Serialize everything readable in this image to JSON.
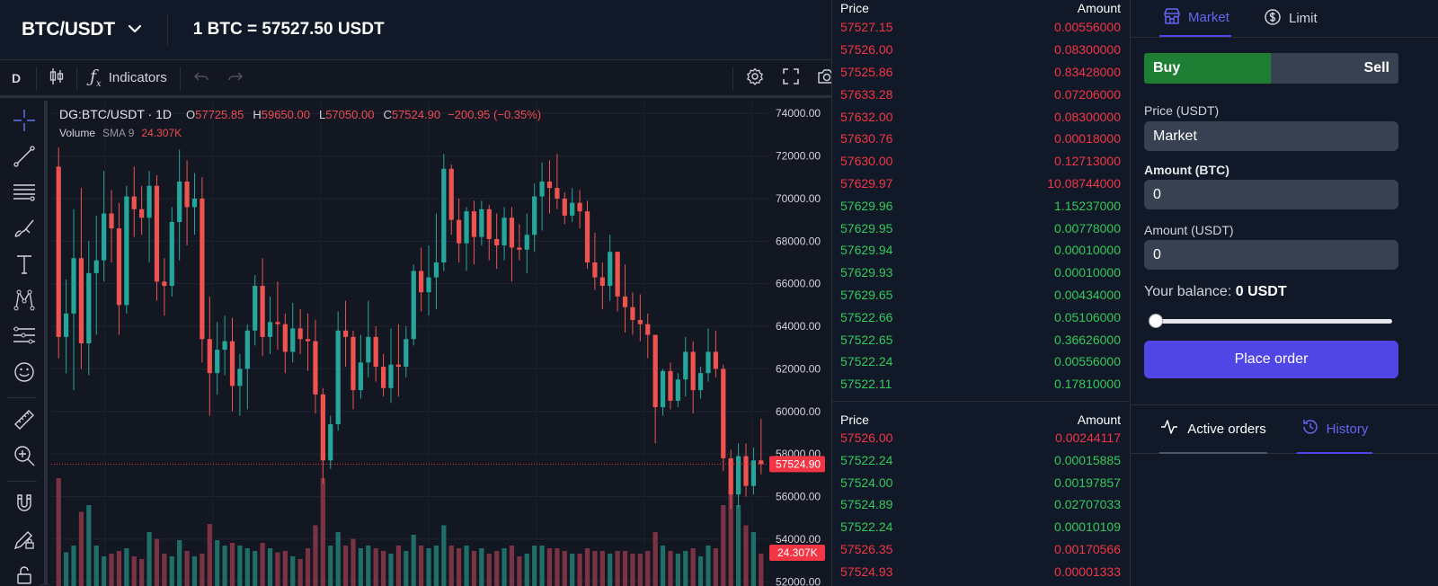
{
  "header": {
    "pair": "BTC/USDT",
    "price_text": "1 BTC = 57527.50 USDT"
  },
  "toolbar": {
    "interval": "D",
    "indicators_label": "Indicators"
  },
  "legend": {
    "symbol": "DG:BTC/USDT · 1D",
    "open_label": "O",
    "open": "57725.85",
    "high_label": "H",
    "high": "59650.00",
    "low_label": "L",
    "low": "57050.00",
    "close_label": "C",
    "close": "57524.90",
    "change": "−200.95 (−0.35%)",
    "volume_label": "Volume",
    "sma_label": "SMA 9",
    "volume_value": "24.307K"
  },
  "chart_data": {
    "type": "candlestick",
    "price_axis_ticks": [
      "74000.00",
      "72000.00",
      "70000.00",
      "68000.00",
      "66000.00",
      "64000.00",
      "62000.00",
      "60000.00",
      "58000.00",
      "56000.00",
      "54000.00",
      "52000.00"
    ],
    "ylim": [
      51800,
      74600
    ],
    "last_price_label": "57524.90",
    "last_price": 57524.9,
    "volume_label": "24.307K",
    "colors": {
      "up": "#26a69a",
      "down": "#ef5350",
      "up_vol": "#1f6e68",
      "down_vol": "#7a3342"
    },
    "candles": [
      [
        71500,
        72400,
        62500,
        63500,
        80
      ],
      [
        63500,
        66200,
        61800,
        64600,
        25
      ],
      [
        64600,
        69500,
        61000,
        67200,
        30
      ],
      [
        67200,
        70500,
        62000,
        63200,
        55
      ],
      [
        63200,
        68000,
        61700,
        66500,
        60
      ],
      [
        66500,
        69200,
        63600,
        67100,
        30
      ],
      [
        67100,
        71300,
        66100,
        69300,
        22
      ],
      [
        69300,
        70400,
        67000,
        68600,
        24
      ],
      [
        68600,
        69800,
        63600,
        65000,
        26
      ],
      [
        65000,
        70600,
        64600,
        70100,
        28
      ],
      [
        70100,
        71500,
        68200,
        69500,
        22
      ],
      [
        69500,
        70600,
        68300,
        69100,
        20
      ],
      [
        69100,
        71300,
        67000,
        70600,
        40
      ],
      [
        70600,
        71100,
        65200,
        66100,
        35
      ],
      [
        66100,
        67200,
        64500,
        65900,
        24
      ],
      [
        65900,
        69600,
        65400,
        68900,
        22
      ],
      [
        68900,
        72300,
        67100,
        70800,
        34
      ],
      [
        70800,
        71800,
        67800,
        69600,
        26
      ],
      [
        69600,
        71200,
        68300,
        70000,
        22
      ],
      [
        70000,
        71000,
        62300,
        63400,
        24
      ],
      [
        63400,
        65400,
        59800,
        61800,
        46
      ],
      [
        61800,
        64200,
        60800,
        62900,
        34
      ],
      [
        62900,
        64500,
        61700,
        63300,
        30
      ],
      [
        63300,
        64400,
        60000,
        61200,
        32
      ],
      [
        61200,
        62700,
        59800,
        62000,
        30
      ],
      [
        62000,
        64100,
        60100,
        63800,
        28
      ],
      [
        63800,
        66400,
        63100,
        65900,
        26
      ],
      [
        65900,
        67200,
        62600,
        63500,
        32
      ],
      [
        63500,
        65400,
        62700,
        64200,
        28
      ],
      [
        64200,
        66100,
        62900,
        64100,
        25
      ],
      [
        64100,
        64600,
        61800,
        62800,
        26
      ],
      [
        62800,
        65100,
        62300,
        63900,
        22
      ],
      [
        63900,
        64800,
        62700,
        63400,
        20
      ],
      [
        63400,
        64600,
        61900,
        63300,
        28
      ],
      [
        63300,
        64300,
        59900,
        60800,
        45
      ],
      [
        60800,
        61100,
        56600,
        57700,
        80
      ],
      [
        57700,
        59800,
        57300,
        59400,
        30
      ],
      [
        59400,
        64700,
        59100,
        63800,
        40
      ],
      [
        63800,
        65200,
        62100,
        63500,
        30
      ],
      [
        63500,
        63800,
        60100,
        61000,
        35
      ],
      [
        61000,
        63600,
        60600,
        62300,
        28
      ],
      [
        62300,
        65200,
        61600,
        63500,
        30
      ],
      [
        63500,
        64000,
        61400,
        62100,
        28
      ],
      [
        62100,
        62700,
        60700,
        61100,
        26
      ],
      [
        61100,
        63900,
        60400,
        62200,
        24
      ],
      [
        62200,
        64100,
        60700,
        62100,
        30
      ],
      [
        62100,
        64000,
        61600,
        63400,
        26
      ],
      [
        63400,
        66900,
        63100,
        66600,
        38
      ],
      [
        66600,
        67700,
        64700,
        65600,
        30
      ],
      [
        65600,
        67800,
        64500,
        66300,
        28
      ],
      [
        66300,
        69300,
        64800,
        67000,
        30
      ],
      [
        67000,
        72100,
        66600,
        71400,
        45
      ],
      [
        71400,
        71600,
        68300,
        69000,
        30
      ],
      [
        69000,
        70000,
        67000,
        67900,
        28
      ],
      [
        67900,
        69600,
        66600,
        69400,
        30
      ],
      [
        69400,
        69900,
        66900,
        68200,
        26
      ],
      [
        68200,
        69900,
        67800,
        69500,
        28
      ],
      [
        69500,
        69700,
        67100,
        68100,
        24
      ],
      [
        68100,
        69300,
        66700,
        67800,
        26
      ],
      [
        67800,
        69600,
        67100,
        69100,
        28
      ],
      [
        69100,
        69600,
        66100,
        67700,
        30
      ],
      [
        67700,
        68800,
        67100,
        67600,
        22
      ],
      [
        67600,
        69300,
        66500,
        68300,
        24
      ],
      [
        68300,
        70700,
        67500,
        70100,
        30
      ],
      [
        70100,
        71700,
        68500,
        70800,
        30
      ],
      [
        70800,
        71800,
        69300,
        70500,
        28
      ],
      [
        70500,
        72100,
        69500,
        70000,
        28
      ],
      [
        70000,
        70300,
        68800,
        69200,
        26
      ],
      [
        69200,
        70500,
        68900,
        69800,
        24
      ],
      [
        69800,
        70400,
        68600,
        69400,
        24
      ],
      [
        69400,
        69900,
        66700,
        67000,
        28
      ],
      [
        67000,
        68400,
        65700,
        66300,
        26
      ],
      [
        66300,
        67000,
        64800,
        65900,
        26
      ],
      [
        65900,
        68300,
        65200,
        67500,
        24
      ],
      [
        67500,
        67500,
        64700,
        65400,
        26
      ],
      [
        65400,
        66900,
        63700,
        64900,
        26
      ],
      [
        64900,
        65600,
        63600,
        64300,
        24
      ],
      [
        64300,
        65500,
        63300,
        64100,
        24
      ],
      [
        64100,
        64600,
        62500,
        63600,
        26
      ],
      [
        63600,
        63600,
        58500,
        60200,
        40
      ],
      [
        60200,
        62000,
        59800,
        61900,
        30
      ],
      [
        61900,
        62300,
        60100,
        60500,
        26
      ],
      [
        60500,
        61800,
        60200,
        61500,
        24
      ],
      [
        61500,
        63500,
        60700,
        62800,
        26
      ],
      [
        62800,
        63300,
        59900,
        61000,
        28
      ],
      [
        61000,
        62100,
        60600,
        61800,
        22
      ],
      [
        61800,
        63900,
        61400,
        62800,
        30
      ],
      [
        62800,
        63800,
        61600,
        62000,
        28
      ],
      [
        62000,
        62200,
        57200,
        57800,
        60
      ],
      [
        57800,
        58200,
        55400,
        56100,
        70
      ],
      [
        56100,
        58500,
        55500,
        57900,
        60
      ],
      [
        57900,
        58500,
        56000,
        56500,
        45
      ],
      [
        56500,
        58300,
        56100,
        57700,
        40
      ],
      [
        57700,
        59650,
        57050,
        57525,
        24
      ]
    ]
  },
  "orderbook": {
    "header_price": "Price",
    "header_amount": "Amount",
    "asks": [
      {
        "price": "57527.15",
        "amount": "0.00556000",
        "side": "sell"
      },
      {
        "price": "57526.00",
        "amount": "0.08300000",
        "side": "sell"
      },
      {
        "price": "57525.86",
        "amount": "0.83428000",
        "side": "sell"
      },
      {
        "price": "57633.28",
        "amount": "0.07206000",
        "side": "sell"
      },
      {
        "price": "57632.00",
        "amount": "0.08300000",
        "side": "sell"
      },
      {
        "price": "57630.76",
        "amount": "0.00018000",
        "side": "sell"
      },
      {
        "price": "57630.00",
        "amount": "0.12713000",
        "side": "sell"
      },
      {
        "price": "57629.97",
        "amount": "10.08744000",
        "side": "sell"
      },
      {
        "price": "57629.96",
        "amount": "1.15237000",
        "side": "buy"
      },
      {
        "price": "57629.95",
        "amount": "0.00778000",
        "side": "buy"
      },
      {
        "price": "57629.94",
        "amount": "0.00010000",
        "side": "buy"
      },
      {
        "price": "57629.93",
        "amount": "0.00010000",
        "side": "buy"
      },
      {
        "price": "57629.65",
        "amount": "0.00434000",
        "side": "buy"
      },
      {
        "price": "57522.66",
        "amount": "0.05106000",
        "side": "buy"
      },
      {
        "price": "57522.65",
        "amount": "0.36626000",
        "side": "buy"
      },
      {
        "price": "57522.24",
        "amount": "0.00556000",
        "side": "buy"
      },
      {
        "price": "57522.11",
        "amount": "0.17810000",
        "side": "buy"
      }
    ],
    "trades_header_price": "Price",
    "trades_header_amount": "Amount",
    "trades": [
      {
        "price": "57526.00",
        "amount": "0.00244117",
        "side": "sell"
      },
      {
        "price": "57522.24",
        "amount": "0.00015885",
        "side": "buy"
      },
      {
        "price": "57524.00",
        "amount": "0.00197857",
        "side": "buy"
      },
      {
        "price": "57524.89",
        "amount": "0.02707033",
        "side": "buy"
      },
      {
        "price": "57522.24",
        "amount": "0.00010109",
        "side": "buy"
      },
      {
        "price": "57526.35",
        "amount": "0.00170566",
        "side": "sell"
      },
      {
        "price": "57524.93",
        "amount": "0.00001333",
        "side": "sell"
      }
    ]
  },
  "trade": {
    "tab_market": "Market",
    "tab_limit": "Limit",
    "buy_label": "Buy",
    "sell_label": "Sell",
    "price_label": "Price (USDT)",
    "price_value": "Market",
    "amount_btc_label": "Amount (BTC)",
    "amount_btc_value": "0",
    "amount_usdt_label": "Amount (USDT)",
    "amount_usdt_value": "0",
    "balance_label": "Your balance:",
    "balance_value": "0 USDT",
    "slider_value": 0,
    "place_order_label": "Place order",
    "active_orders_label": "Active orders",
    "history_label": "History",
    "accent_color": "#4f46e5",
    "buy_color": "#1e7e34"
  }
}
